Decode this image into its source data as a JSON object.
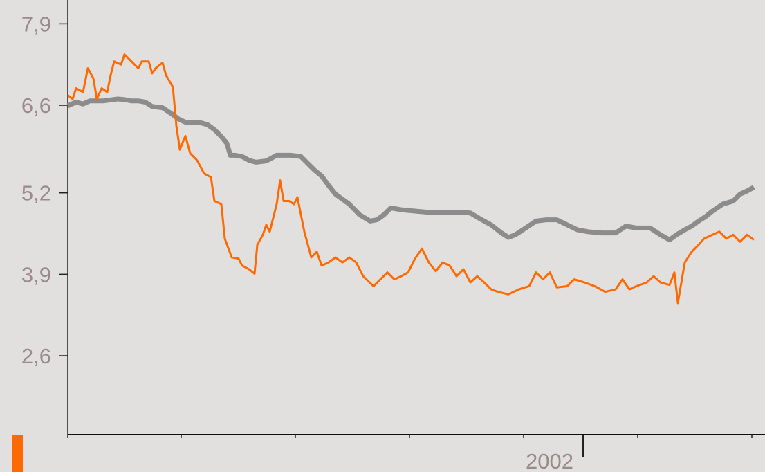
{
  "chart_data": {
    "type": "line",
    "xlim": [
      0,
      1008
    ],
    "x_minor_ticks": [
      0,
      164,
      329,
      494,
      659,
      824,
      989
    ],
    "xticks": [
      {
        "value": 745,
        "label": "2002"
      }
    ],
    "ylim": [
      1.34,
      8.28
    ],
    "yticks": [
      {
        "value": 2.6,
        "label": "2,6"
      },
      {
        "value": 3.9,
        "label": "3,9"
      },
      {
        "value": 5.2,
        "label": "5,2"
      },
      {
        "value": 6.6,
        "label": "6,6"
      },
      {
        "value": 7.9,
        "label": "7,9"
      }
    ],
    "series": [
      {
        "color": "#8c8c8c",
        "width": 7,
        "x": [
          0,
          12,
          22,
          32,
          52,
          72,
          82,
          92,
          102,
          112,
          122,
          137,
          152,
          160,
          172,
          192,
          202,
          212,
          222,
          230,
          235,
          242,
          252,
          262,
          272,
          287,
          302,
          322,
          337,
          347,
          357,
          367,
          377,
          387,
          397,
          407,
          422,
          437,
          447,
          457,
          467,
          482,
          502,
          522,
          542,
          562,
          582,
          597,
          612,
          627,
          637,
          647,
          662,
          677,
          692,
          707,
          722,
          737,
          752,
          772,
          792,
          807,
          822,
          842,
          857,
          870,
          880,
          892,
          902,
          912,
          922,
          932,
          947,
          962,
          972,
          982,
          992
        ],
        "values": [
          6.59,
          6.65,
          6.62,
          6.67,
          6.67,
          6.7,
          6.69,
          6.67,
          6.67,
          6.65,
          6.58,
          6.56,
          6.45,
          6.38,
          6.32,
          6.32,
          6.29,
          6.21,
          6.1,
          5.99,
          5.8,
          5.8,
          5.78,
          5.72,
          5.69,
          5.71,
          5.8,
          5.8,
          5.78,
          5.67,
          5.56,
          5.47,
          5.32,
          5.18,
          5.1,
          5.02,
          4.85,
          4.75,
          4.77,
          4.85,
          4.96,
          4.93,
          4.91,
          4.89,
          4.89,
          4.89,
          4.88,
          4.78,
          4.69,
          4.56,
          4.49,
          4.53,
          4.64,
          4.75,
          4.77,
          4.77,
          4.69,
          4.61,
          4.58,
          4.56,
          4.56,
          4.67,
          4.64,
          4.64,
          4.53,
          4.45,
          4.53,
          4.61,
          4.67,
          4.75,
          4.82,
          4.91,
          5.02,
          5.07,
          5.18,
          5.23,
          5.29
        ]
      },
      {
        "color": "#ff6a00",
        "width": 3,
        "x": [
          0,
          7,
          12,
          22,
          29,
          37,
          42,
          49,
          57,
          62,
          67,
          77,
          82,
          92,
          102,
          107,
          117,
          122,
          127,
          137,
          142,
          152,
          157,
          162,
          170,
          177,
          187,
          197,
          207,
          212,
          222,
          227,
          237,
          247,
          252,
          262,
          270,
          274,
          282,
          287,
          292,
          302,
          307,
          312,
          320,
          327,
          332,
          342,
          352,
          360,
          367,
          377,
          387,
          397,
          407,
          417,
          427,
          442,
          452,
          462,
          472,
          482,
          492,
          502,
          512,
          522,
          532,
          542,
          552,
          562,
          572,
          582,
          592,
          602,
          612,
          622,
          637,
          652,
          667,
          677,
          687,
          697,
          707,
          722,
          732,
          747,
          762,
          777,
          792,
          802,
          812,
          822,
          837,
          847,
          857,
          870,
          877,
          882,
          892,
          902,
          912,
          920,
          932,
          942,
          952,
          962,
          972,
          982,
          992
        ],
        "values": [
          6.76,
          6.7,
          6.87,
          6.81,
          7.19,
          7.03,
          6.7,
          6.87,
          6.81,
          7.08,
          7.3,
          7.25,
          7.41,
          7.3,
          7.19,
          7.3,
          7.3,
          7.11,
          7.19,
          7.28,
          7.08,
          6.89,
          6.27,
          5.89,
          6.11,
          5.83,
          5.72,
          5.51,
          5.45,
          5.07,
          5.02,
          4.47,
          4.17,
          4.15,
          4.04,
          3.98,
          3.91,
          4.37,
          4.53,
          4.69,
          4.58,
          5.02,
          5.4,
          5.07,
          5.07,
          5.02,
          5.13,
          4.58,
          4.17,
          4.26,
          4.04,
          4.09,
          4.17,
          4.09,
          4.17,
          4.09,
          3.87,
          3.71,
          3.82,
          3.93,
          3.82,
          3.87,
          3.93,
          4.15,
          4.31,
          4.09,
          3.95,
          4.09,
          4.04,
          3.87,
          3.98,
          3.77,
          3.87,
          3.77,
          3.66,
          3.62,
          3.58,
          3.66,
          3.71,
          3.93,
          3.82,
          3.93,
          3.69,
          3.71,
          3.82,
          3.77,
          3.71,
          3.62,
          3.66,
          3.82,
          3.66,
          3.71,
          3.77,
          3.87,
          3.77,
          3.73,
          3.93,
          3.44,
          4.09,
          4.26,
          4.37,
          4.47,
          4.53,
          4.58,
          4.47,
          4.53,
          4.42,
          4.53,
          4.45
        ]
      }
    ]
  }
}
